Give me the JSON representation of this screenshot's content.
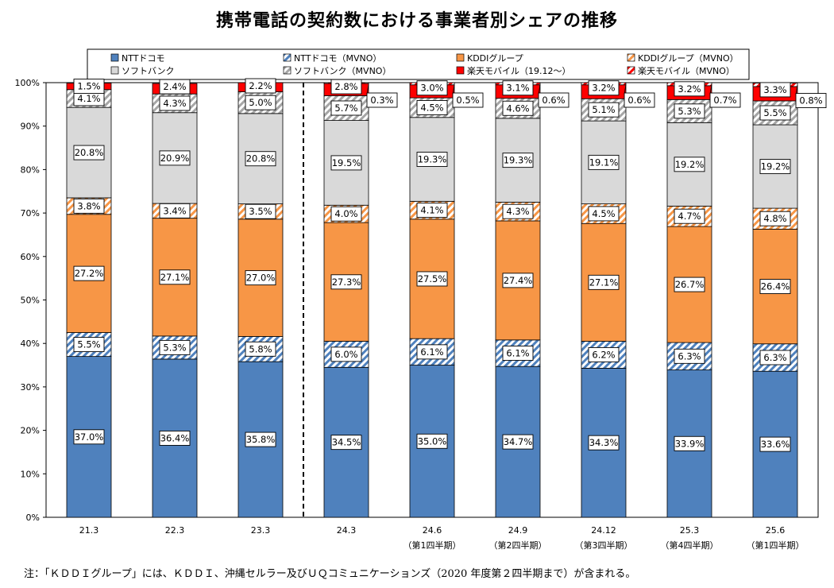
{
  "title": "携帯電話の契約数における事業者別シェアの推移",
  "note": "注：「ＫＤＤＩグループ」には、ＫＤＤＩ、沖縄セルラー及びＵＱコミュニケーションズ（2020 年度第２四半期まで）が含まれる。",
  "colors": {
    "docomo": "#4F81BD",
    "kddi": "#F79646",
    "softbank": "#D9D9D9",
    "rakuten": "#FF0000",
    "hatch_docomo": "#4F81BD",
    "hatch_kddi": "#F79646",
    "hatch_softbank": "#A6A6A6",
    "hatch_rakuten": "#FF0000"
  },
  "chart_data": {
    "type": "bar",
    "stacked": true,
    "percent_stacked": true,
    "categories": [
      "21.3",
      "22.3",
      "23.3",
      "24.3",
      "24.6",
      "24.9",
      "24.12",
      "25.3",
      "25.6"
    ],
    "category_sublabels": [
      "",
      "",
      "",
      "",
      "（第1四半期）",
      "（第2四半期）",
      "（第3四半期）",
      "（第4四半期）",
      "（第1四半期）"
    ],
    "y_ticks": [
      "0%",
      "10%",
      "20%",
      "30%",
      "40%",
      "50%",
      "60%",
      "70%",
      "80%",
      "90%",
      "100%"
    ],
    "ylim": [
      0,
      100
    ],
    "divider_after_category": "23.3",
    "legend_position": "top",
    "series": [
      {
        "name": "NTTドコモ",
        "fill": "solid",
        "color_key": "docomo",
        "values": [
          37.0,
          36.4,
          35.8,
          34.5,
          35.0,
          34.7,
          34.3,
          33.9,
          33.6
        ]
      },
      {
        "name": "NTTドコモ（MVNO）",
        "fill": "hatch",
        "color_key": "hatch_docomo",
        "values": [
          5.5,
          5.3,
          5.8,
          6.0,
          6.1,
          6.1,
          6.2,
          6.3,
          6.3
        ]
      },
      {
        "name": "KDDIグループ",
        "fill": "solid",
        "color_key": "kddi",
        "values": [
          27.2,
          27.1,
          27.0,
          27.3,
          27.5,
          27.4,
          27.1,
          26.7,
          26.4
        ]
      },
      {
        "name": "KDDIグループ（MVNO）",
        "fill": "hatch",
        "color_key": "hatch_kddi",
        "values": [
          3.8,
          3.4,
          3.5,
          4.0,
          4.1,
          4.3,
          4.5,
          4.7,
          4.8
        ]
      },
      {
        "name": "ソフトバンク",
        "fill": "solid",
        "color_key": "softbank",
        "values": [
          20.8,
          20.9,
          20.8,
          19.5,
          19.3,
          19.3,
          19.1,
          19.2,
          19.2
        ]
      },
      {
        "name": "ソフトバンク（MVNO）",
        "fill": "hatch",
        "color_key": "hatch_softbank",
        "values": [
          4.1,
          4.3,
          5.0,
          5.7,
          4.5,
          4.6,
          5.1,
          5.3,
          5.5
        ]
      },
      {
        "name": "楽天モバイル（19.12～）",
        "fill": "solid",
        "color_key": "rakuten",
        "values": [
          1.5,
          2.4,
          2.2,
          2.8,
          3.0,
          3.1,
          3.2,
          3.2,
          3.3
        ]
      },
      {
        "name": "楽天モバイル（MVNO）",
        "fill": "hatch",
        "color_key": "hatch_rakuten",
        "values": [
          null,
          null,
          null,
          0.3,
          0.5,
          0.6,
          0.6,
          0.7,
          0.8
        ]
      }
    ],
    "value_labels": [
      [
        "37.0%",
        "36.4%",
        "35.8%",
        "34.5%",
        "35.0%",
        "34.7%",
        "34.3%",
        "33.9%",
        "33.6%"
      ],
      [
        "5.5%",
        "5.3%",
        "5.8%",
        "6.0%",
        "6.1%",
        "6.1%",
        "6.2%",
        "6.3%",
        "6.3%"
      ],
      [
        "27.2%",
        "27.1%",
        "27.0%",
        "27.3%",
        "27.5%",
        "27.4%",
        "27.1%",
        "26.7%",
        "26.4%"
      ],
      [
        "3.8%",
        "3.4%",
        "3.5%",
        "4.0%",
        "4.1%",
        "4.3%",
        "4.5%",
        "4.7%",
        "4.8%"
      ],
      [
        "20.8%",
        "20.9%",
        "20.8%",
        "19.5%",
        "19.3%",
        "19.3%",
        "19.1%",
        "19.2%",
        "19.2%"
      ],
      [
        "4.1%",
        "4.3%",
        "5.0%",
        "5.7%",
        "4.5%",
        "4.6%",
        "5.1%",
        "5.3%",
        "5.5%"
      ],
      [
        "1.5%",
        "2.4%",
        "2.2%",
        "2.8%",
        "3.0%",
        "3.1%",
        "3.2%",
        "3.2%",
        "3.3%"
      ],
      [
        null,
        null,
        null,
        "0.3%",
        "0.5%",
        "0.6%",
        "0.6%",
        "0.7%",
        "0.8%"
      ]
    ]
  }
}
